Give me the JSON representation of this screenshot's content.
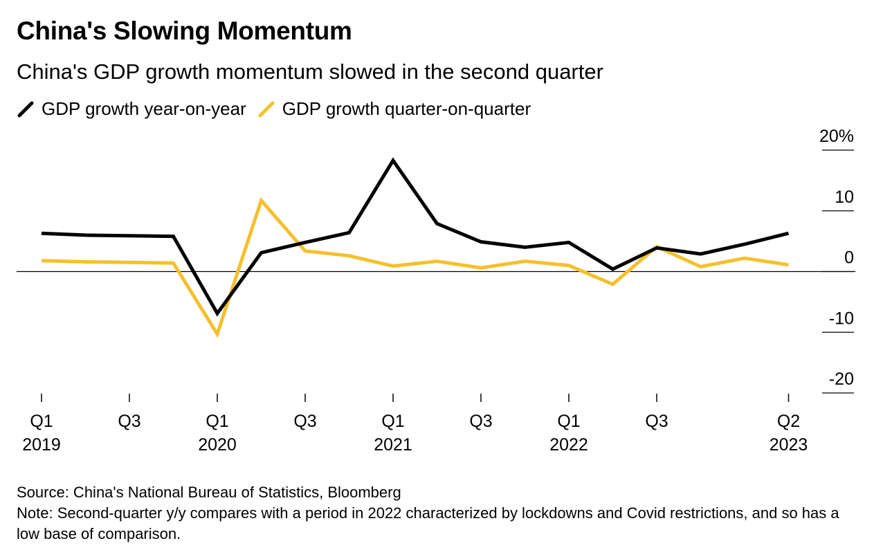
{
  "title": "China's Slowing Momentum",
  "subtitle": "China's GDP growth momentum slowed in the second quarter",
  "legend": [
    {
      "label": "GDP growth year-on-year",
      "color": "#000000"
    },
    {
      "label": "GDP growth quarter-on-quarter",
      "color": "#f5c02c"
    }
  ],
  "chart_data": {
    "type": "line",
    "x": [
      "2019Q1",
      "2019Q2",
      "2019Q3",
      "2019Q4",
      "2020Q1",
      "2020Q2",
      "2020Q3",
      "2020Q4",
      "2021Q1",
      "2021Q2",
      "2021Q3",
      "2021Q4",
      "2022Q1",
      "2022Q2",
      "2022Q3",
      "2022Q4",
      "2023Q1",
      "2023Q2"
    ],
    "series": [
      {
        "name": "GDP growth year-on-year",
        "color": "#000000",
        "values": [
          6.3,
          6.0,
          5.9,
          5.8,
          -6.9,
          3.1,
          4.8,
          6.4,
          18.3,
          7.9,
          4.9,
          4.0,
          4.8,
          0.4,
          3.9,
          2.9,
          4.5,
          6.3
        ]
      },
      {
        "name": "GDP growth quarter-on-quarter",
        "color": "#f5c02c",
        "values": [
          1.8,
          1.6,
          1.5,
          1.4,
          -10.3,
          11.7,
          3.4,
          2.6,
          0.9,
          1.7,
          0.6,
          1.7,
          1.0,
          -2.1,
          4.1,
          0.8,
          2.2,
          1.1
        ]
      }
    ],
    "ylim": [
      -20,
      20
    ],
    "yticks": [
      {
        "value": 20,
        "label": "20%"
      },
      {
        "value": 10,
        "label": "10"
      },
      {
        "value": 0,
        "label": "0"
      },
      {
        "value": -10,
        "label": "-10"
      },
      {
        "value": -20,
        "label": "-20"
      }
    ],
    "xticks": [
      {
        "index": 0,
        "line1": "Q1",
        "line2": "2019"
      },
      {
        "index": 2,
        "line1": "Q3",
        "line2": ""
      },
      {
        "index": 4,
        "line1": "Q1",
        "line2": "2020"
      },
      {
        "index": 6,
        "line1": "Q3",
        "line2": ""
      },
      {
        "index": 8,
        "line1": "Q1",
        "line2": "2021"
      },
      {
        "index": 10,
        "line1": "Q3",
        "line2": ""
      },
      {
        "index": 12,
        "line1": "Q1",
        "line2": "2022"
      },
      {
        "index": 14,
        "line1": "Q3",
        "line2": ""
      },
      {
        "index": 17,
        "line1": "Q2",
        "line2": "2023"
      }
    ],
    "zero_line": true
  },
  "footer": {
    "source": "Source: China's National Bureau of Statistics, Bloomberg",
    "note": "Note: Second-quarter y/y compares with a period in 2022 characterized by lockdowns and Covid restrictions, and so has a low base of comparison."
  }
}
